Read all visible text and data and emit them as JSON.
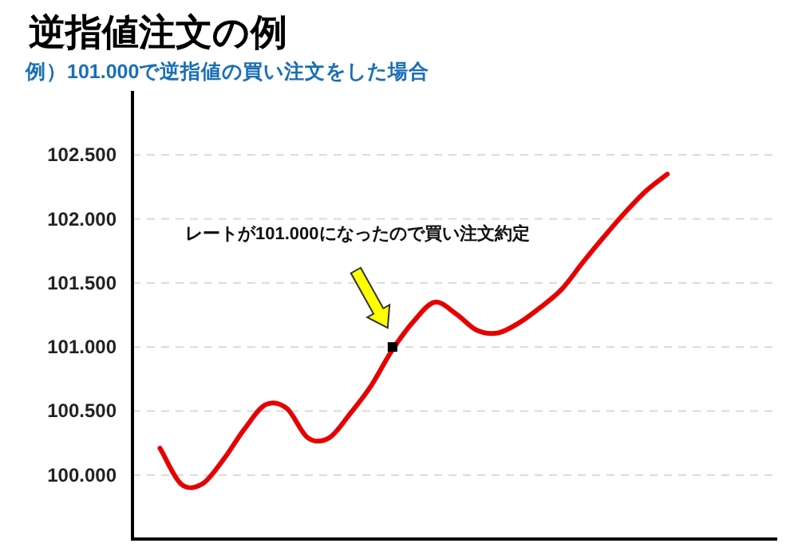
{
  "chart_data": {
    "type": "line",
    "title": "逆指値注文の例",
    "subtitle": "例）101.000で逆指値の買い注文をした場合",
    "categories": [
      null,
      null,
      null,
      null,
      null,
      null,
      null,
      null,
      null,
      null,
      null,
      null,
      null,
      null,
      null,
      null,
      null,
      null,
      null,
      null,
      null,
      null,
      null,
      null,
      null
    ],
    "series": [
      {
        "color": "#e60000",
        "values": [
          100.21,
          99.93,
          99.93,
          100.12,
          100.36,
          100.55,
          100.52,
          100.29,
          100.29,
          100.48,
          100.7,
          100.98,
          101.2,
          101.35,
          101.26,
          101.13,
          101.11,
          101.19,
          101.31,
          101.45,
          101.66,
          101.86,
          102.05,
          102.22,
          102.35
        ]
      },
      {
        "type": "scatter",
        "color": "#000000",
        "marker": "square",
        "values": [
          null,
          null,
          null,
          null,
          null,
          null,
          null,
          null,
          null,
          null,
          null,
          101.0,
          null,
          null,
          null,
          null,
          null,
          null,
          null,
          null,
          null,
          null,
          null,
          null,
          null
        ]
      }
    ],
    "ylim": [
      99.5,
      103.0
    ],
    "yticks": [
      {
        "value": 100.0,
        "label": "100.000"
      },
      {
        "value": 100.5,
        "label": "100.500"
      },
      {
        "value": 101.0,
        "label": "101.000"
      },
      {
        "value": 101.5,
        "label": "101.500"
      },
      {
        "value": 102.0,
        "label": "102.000"
      },
      {
        "value": 102.5,
        "label": "102.500"
      }
    ],
    "grid": "y",
    "marker": "none",
    "line_style": "solid",
    "annotations": [
      "レートが101.000になったので買い注文約定"
    ]
  }
}
